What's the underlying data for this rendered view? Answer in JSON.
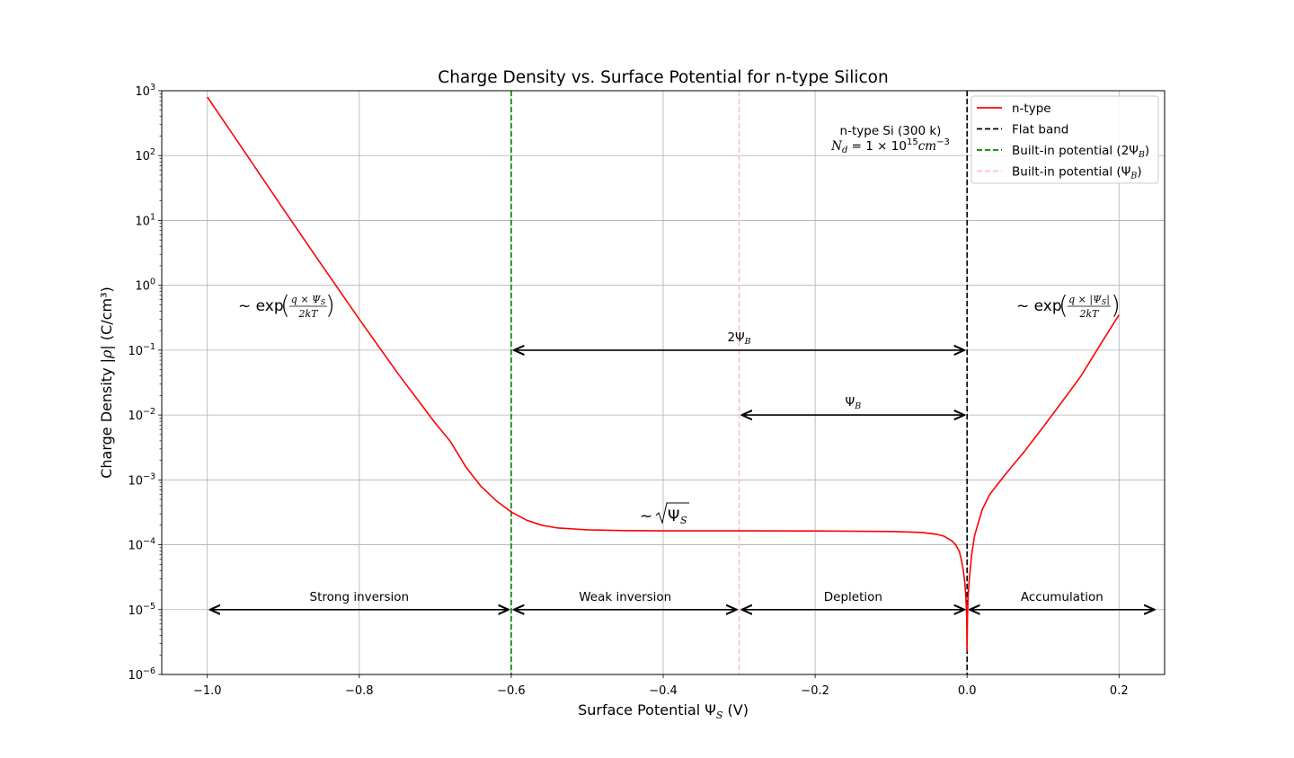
{
  "chart_data": {
    "type": "line",
    "title": "Charge Density vs. Surface Potential for n-type Silicon",
    "xlabel": "Surface Potential Ψ_S (V)",
    "ylabel": "Charge Density |ρ| (C/cm³)",
    "xlim": [
      -1.06,
      0.26
    ],
    "ylim": [
      1e-06,
      1000.0
    ],
    "yscale": "log",
    "grid": true,
    "legend_position": "top-right",
    "x_ticks": [
      {
        "value": -1.0,
        "label": "−1.0"
      },
      {
        "value": -0.8,
        "label": "−0.8"
      },
      {
        "value": -0.6,
        "label": "−0.6"
      },
      {
        "value": -0.4,
        "label": "−0.4"
      },
      {
        "value": -0.2,
        "label": "−0.2"
      },
      {
        "value": 0.0,
        "label": "0.0"
      },
      {
        "value": 0.2,
        "label": "0.2"
      }
    ],
    "y_ticks": [
      {
        "value": 1e-06,
        "exp": "−6"
      },
      {
        "value": 1e-05,
        "exp": "−5"
      },
      {
        "value": 0.0001,
        "exp": "−4"
      },
      {
        "value": 0.001,
        "exp": "−3"
      },
      {
        "value": 0.01,
        "exp": "−2"
      },
      {
        "value": 0.1,
        "exp": "−1"
      },
      {
        "value": 1,
        "exp": "0"
      },
      {
        "value": 10,
        "exp": "1"
      },
      {
        "value": 100,
        "exp": "2"
      },
      {
        "value": 1000,
        "exp": "3"
      }
    ],
    "series": [
      {
        "name": "n-type",
        "color": "#ff0000",
        "style": "solid",
        "points": [
          [
            -1.0,
            800
          ],
          [
            -0.95,
            110
          ],
          [
            -0.9,
            15
          ],
          [
            -0.85,
            2.1
          ],
          [
            -0.8,
            0.3
          ],
          [
            -0.75,
            0.045
          ],
          [
            -0.7,
            0.0075
          ],
          [
            -0.68,
            0.0039
          ],
          [
            -0.66,
            0.0016
          ],
          [
            -0.64,
            0.0008
          ],
          [
            -0.62,
            0.00048
          ],
          [
            -0.6,
            0.00032
          ],
          [
            -0.58,
            0.00024
          ],
          [
            -0.56,
            0.0002
          ],
          [
            -0.54,
            0.000182
          ],
          [
            -0.5,
            0.00017
          ],
          [
            -0.45,
            0.000165
          ],
          [
            -0.4,
            0.000164
          ],
          [
            -0.3,
            0.000164
          ],
          [
            -0.2,
            0.000163
          ],
          [
            -0.1,
            0.00016
          ],
          [
            -0.06,
            0.000155
          ],
          [
            -0.04,
            0.000145
          ],
          [
            -0.03,
            0.000135
          ],
          [
            -0.02,
            0.000115
          ],
          [
            -0.015,
            0.0001
          ],
          [
            -0.01,
            7.8e-05
          ],
          [
            -0.007,
            5.5e-05
          ],
          [
            -0.005,
            4.1e-05
          ],
          [
            -0.003,
            2.6e-05
          ],
          [
            -0.0015,
            1.5e-05
          ],
          [
            -0.0005,
            7.5e-06
          ],
          [
            0.0,
            2.3e-06
          ],
          [
            0.0005,
            7.5e-06
          ],
          [
            0.0015,
            1.7e-05
          ],
          [
            0.003,
            3e-05
          ],
          [
            0.006,
            7e-05
          ],
          [
            0.01,
            0.00014
          ],
          [
            0.02,
            0.00035
          ],
          [
            0.03,
            0.0006
          ],
          [
            0.05,
            0.0012
          ],
          [
            0.075,
            0.0027
          ],
          [
            0.1,
            0.0065
          ],
          [
            0.125,
            0.016
          ],
          [
            0.15,
            0.04
          ],
          [
            0.175,
            0.12
          ],
          [
            0.2,
            0.35
          ]
        ]
      }
    ],
    "vlines": [
      {
        "name": "Flat band",
        "x": 0.0,
        "color": "#000000"
      },
      {
        "name": "Built-in potential (2Ψ_B)",
        "x": -0.6,
        "color": "#008000"
      },
      {
        "name": "Built-in potential (Ψ_B)",
        "x": -0.3,
        "color": "#ffc0cb"
      }
    ],
    "arrows": [
      {
        "label": "2Ψ_B",
        "x1": -0.6,
        "x2": 0.0,
        "y": 0.1
      },
      {
        "label": "Ψ_B",
        "x1": -0.3,
        "x2": 0.0,
        "y": 0.01
      },
      {
        "label": "Strong inversion",
        "x1": -1.0,
        "x2": -0.6,
        "y": 1e-05
      },
      {
        "label": "Weak inversion",
        "x1": -0.6,
        "x2": -0.3,
        "y": 1e-05
      },
      {
        "label": "Depletion",
        "x1": -0.3,
        "x2": 0.0,
        "y": 1e-05
      },
      {
        "label": "Accumulation",
        "x1": 0.0,
        "x2": 0.25,
        "y": 1e-05
      }
    ],
    "annotations": {
      "info_line1": "n-type Si (300 k)",
      "info_line2": "N_d = 1 × 10^15 cm^−3",
      "left_exp": "~ exp(q × Ψ_S / 2kT)",
      "right_exp": "~ exp(q × |Ψ_S| / 2kT)",
      "sqrt_label": "~ √Ψ_S"
    },
    "legend": [
      {
        "label": "n-type",
        "color": "#ff0000",
        "style": "solid"
      },
      {
        "label": "Flat band",
        "color": "#000000",
        "style": "dashed"
      },
      {
        "label": "Built-in potential (2Ψ_B)",
        "color": "#008000",
        "style": "dashed"
      },
      {
        "label": "Built-in potential (Ψ_B)",
        "color": "#ffc0cb",
        "style": "dashed"
      }
    ]
  }
}
